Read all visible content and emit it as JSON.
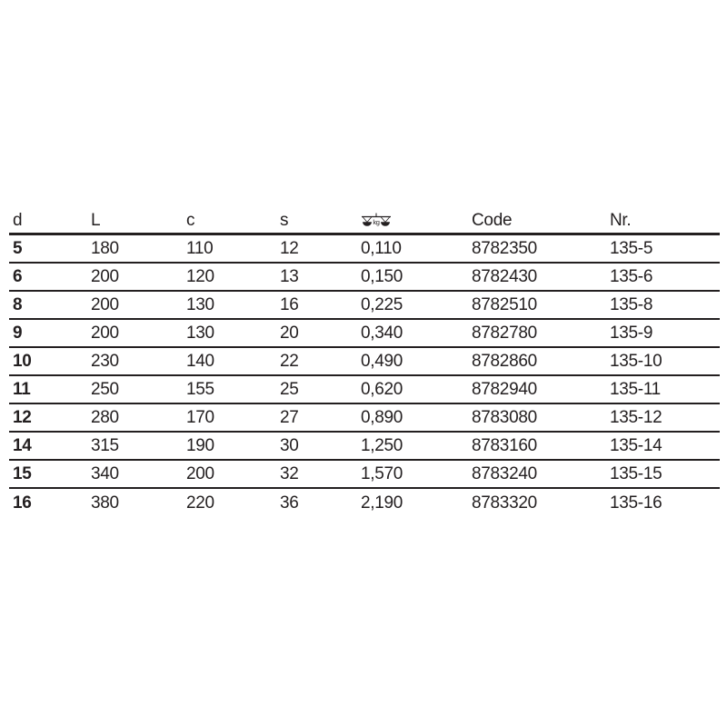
{
  "page": {
    "background": "#ffffff"
  },
  "table": {
    "text_color": "#231f20",
    "rule_color": "#231f20",
    "weight_icon": {
      "name": "scale-kg-icon",
      "label": "kg"
    },
    "columns": [
      {
        "key": "d",
        "label": "d"
      },
      {
        "key": "l",
        "label": "L"
      },
      {
        "key": "c",
        "label": "c"
      },
      {
        "key": "s",
        "label": "s"
      },
      {
        "key": "kg",
        "label": ""
      },
      {
        "key": "code",
        "label": "Code"
      },
      {
        "key": "nr",
        "label": "Nr."
      }
    ],
    "rows": [
      {
        "d": "5",
        "l": "180",
        "c": "110",
        "s": "12",
        "kg": "0,110",
        "code": "8782350",
        "nr": "135-5"
      },
      {
        "d": "6",
        "l": "200",
        "c": "120",
        "s": "13",
        "kg": "0,150",
        "code": "8782430",
        "nr": "135-6"
      },
      {
        "d": "8",
        "l": "200",
        "c": "130",
        "s": "16",
        "kg": "0,225",
        "code": "8782510",
        "nr": "135-8"
      },
      {
        "d": "9",
        "l": "200",
        "c": "130",
        "s": "20",
        "kg": "0,340",
        "code": "8782780",
        "nr": "135-9"
      },
      {
        "d": "10",
        "l": "230",
        "c": "140",
        "s": "22",
        "kg": "0,490",
        "code": "8782860",
        "nr": "135-10"
      },
      {
        "d": "11",
        "l": "250",
        "c": "155",
        "s": "25",
        "kg": "0,620",
        "code": "8782940",
        "nr": "135-11"
      },
      {
        "d": "12",
        "l": "280",
        "c": "170",
        "s": "27",
        "kg": "0,890",
        "code": "8783080",
        "nr": "135-12"
      },
      {
        "d": "14",
        "l": "315",
        "c": "190",
        "s": "30",
        "kg": "1,250",
        "code": "8783160",
        "nr": "135-14"
      },
      {
        "d": "15",
        "l": "340",
        "c": "200",
        "s": "32",
        "kg": "1,570",
        "code": "8783240",
        "nr": "135-15"
      },
      {
        "d": "16",
        "l": "380",
        "c": "220",
        "s": "36",
        "kg": "2,190",
        "code": "8783320",
        "nr": "135-16"
      }
    ]
  }
}
